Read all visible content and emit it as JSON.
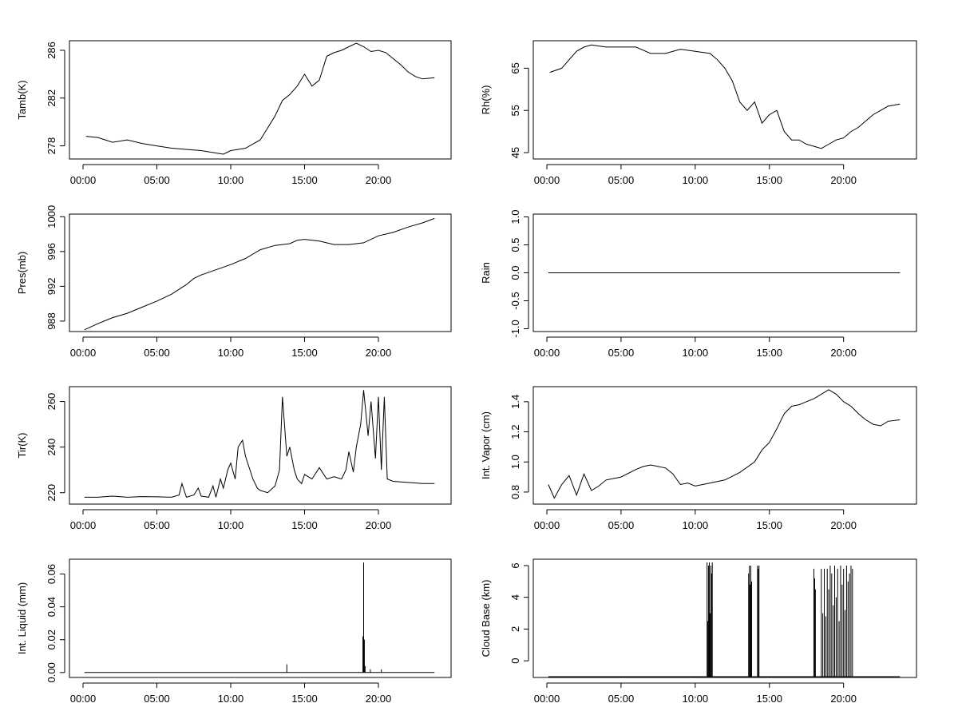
{
  "chart_data": [
    {
      "type": "line",
      "ylabel": "Tamb(K)",
      "xlabel": "",
      "xlim": [
        0,
        24
      ],
      "ylim": [
        276.9,
        286.8
      ],
      "x_ticks": [
        "00:00",
        "05:00",
        "10:00",
        "15:00",
        "20:00"
      ],
      "y_ticks": [
        "278",
        "282",
        "286"
      ],
      "y_tick_values": [
        278,
        282,
        286
      ],
      "x": [
        0.2,
        1,
        2,
        3,
        4,
        5,
        6,
        7,
        8,
        9,
        9.5,
        10,
        11,
        12,
        12.5,
        13,
        13.5,
        14,
        14.5,
        15,
        15.5,
        16,
        16.5,
        17,
        17.5,
        18,
        18.5,
        19,
        19.5,
        20,
        20.5,
        21,
        21.5,
        22,
        22.5,
        23,
        23.8
      ],
      "y": [
        278.8,
        278.7,
        278.3,
        278.5,
        278.2,
        278.0,
        277.8,
        277.7,
        277.6,
        277.4,
        277.3,
        277.6,
        277.8,
        278.5,
        279.5,
        280.5,
        281.8,
        282.3,
        283.0,
        284.0,
        283.0,
        283.5,
        285.5,
        285.8,
        286.0,
        286.3,
        286.6,
        286.3,
        285.9,
        286.0,
        285.8,
        285.3,
        284.8,
        284.2,
        283.8,
        283.6,
        283.7
      ]
    },
    {
      "type": "line",
      "ylabel": "Rh(%)",
      "xlabel": "",
      "xlim": [
        0,
        24
      ],
      "ylim": [
        43.5,
        71.5
      ],
      "x_ticks": [
        "00:00",
        "05:00",
        "10:00",
        "15:00",
        "20:00"
      ],
      "y_ticks": [
        "45",
        "55",
        "65"
      ],
      "y_tick_values": [
        45,
        55,
        65
      ],
      "x": [
        0.2,
        1,
        1.5,
        2,
        2.5,
        3,
        4,
        5,
        6,
        7,
        8,
        9,
        10,
        11,
        11.5,
        12,
        12.5,
        13,
        13.5,
        14,
        14.5,
        15,
        15.5,
        16,
        16.5,
        17,
        17.5,
        18,
        18.5,
        19,
        19.5,
        20,
        20.5,
        21,
        21.5,
        22,
        23,
        23.8
      ],
      "y": [
        64,
        65,
        67,
        69,
        70,
        70.5,
        70,
        70,
        70,
        68.5,
        68.5,
        69.5,
        69,
        68.5,
        67,
        65,
        62,
        57,
        55,
        57,
        52,
        54,
        55,
        50,
        48,
        48,
        47,
        46.5,
        46,
        47,
        48,
        48.5,
        50,
        51,
        52.5,
        54,
        56,
        56.5
      ]
    },
    {
      "type": "line",
      "ylabel": "Pres(mb)",
      "xlabel": "",
      "xlim": [
        0,
        24
      ],
      "ylim": [
        986.8,
        1000.3
      ],
      "x_ticks": [
        "00:00",
        "05:00",
        "10:00",
        "15:00",
        "20:00"
      ],
      "y_ticks": [
        "988",
        "992",
        "996",
        "1000"
      ],
      "y_tick_values": [
        988,
        992,
        996,
        1000
      ],
      "x": [
        0.1,
        1,
        2,
        3,
        4,
        5,
        6,
        7,
        7.5,
        8,
        9,
        10,
        11,
        12,
        13,
        14,
        14.5,
        15,
        16,
        17,
        18,
        19,
        20,
        21,
        22,
        23,
        23.8
      ],
      "y": [
        987.0,
        987.7,
        988.4,
        988.9,
        989.6,
        990.3,
        991.1,
        992.2,
        992.9,
        993.3,
        993.9,
        994.5,
        995.2,
        996.2,
        996.7,
        996.9,
        997.3,
        997.4,
        997.2,
        996.8,
        996.8,
        997.0,
        997.8,
        998.2,
        998.8,
        999.3,
        999.8
      ]
    },
    {
      "type": "line",
      "ylabel": "Rain",
      "xlabel": "",
      "xlim": [
        0,
        24
      ],
      "ylim": [
        -1.05,
        1.05
      ],
      "x_ticks": [
        "00:00",
        "05:00",
        "10:00",
        "15:00",
        "20:00"
      ],
      "y_ticks": [
        "-1.0",
        "-0.5",
        "0.0",
        "0.5",
        "1.0"
      ],
      "y_tick_values": [
        -1,
        -0.5,
        0,
        0.5,
        1
      ],
      "x": [
        0.1,
        23.8
      ],
      "y": [
        0,
        0
      ]
    },
    {
      "type": "line",
      "ylabel": "Tir(K)",
      "xlabel": "",
      "xlim": [
        0,
        24
      ],
      "ylim": [
        215,
        266.5
      ],
      "x_ticks": [
        "00:00",
        "05:00",
        "10:00",
        "15:00",
        "20:00"
      ],
      "y_ticks": [
        "220",
        "240",
        "260"
      ],
      "y_tick_values": [
        220,
        240,
        260
      ],
      "x": [
        0.1,
        1,
        2,
        3,
        4,
        5,
        6,
        6.5,
        6.7,
        7,
        7.5,
        7.8,
        8,
        8.5,
        8.8,
        9,
        9.3,
        9.5,
        9.8,
        10,
        10.3,
        10.5,
        10.8,
        11,
        11.3,
        11.5,
        11.8,
        12,
        12.5,
        13,
        13.3,
        13.5,
        13.8,
        14,
        14.3,
        14.5,
        14.8,
        15,
        15.5,
        16,
        16.5,
        17,
        17.5,
        17.8,
        18,
        18.3,
        18.5,
        18.8,
        19,
        19.3,
        19.5,
        19.8,
        20,
        20.2,
        20.4,
        20.6,
        21,
        22,
        23,
        23.8
      ],
      "y": [
        218,
        218,
        218.5,
        218,
        218.3,
        218.2,
        218,
        219,
        224,
        218,
        219,
        222,
        218.5,
        218,
        223,
        218,
        226,
        222,
        230,
        233,
        226,
        240,
        243,
        236,
        230,
        226,
        222,
        221,
        220,
        223,
        230,
        262,
        236,
        240,
        230,
        226,
        224,
        228,
        226,
        231,
        226,
        227,
        226,
        230,
        238,
        229,
        240,
        250,
        265,
        245,
        260,
        235,
        262,
        230,
        262,
        226,
        225,
        224.5,
        224,
        224
      ]
    },
    {
      "type": "line",
      "ylabel": "Int. Vapor (cm)",
      "xlabel": "",
      "xlim": [
        0,
        24
      ],
      "ylim": [
        0.72,
        1.5
      ],
      "x_ticks": [
        "00:00",
        "05:00",
        "10:00",
        "15:00",
        "20:00"
      ],
      "y_ticks": [
        "0.8",
        "1.0",
        "1.2",
        "1.4"
      ],
      "y_tick_values": [
        0.8,
        1.0,
        1.2,
        1.4
      ],
      "x": [
        0.1,
        0.5,
        1,
        1.5,
        2,
        2.5,
        3,
        3.5,
        4,
        5,
        6,
        6.5,
        7,
        8,
        8.5,
        9,
        9.5,
        10,
        11,
        12,
        13,
        14,
        14.5,
        15,
        15.5,
        16,
        16.5,
        17,
        17.5,
        18,
        18.5,
        19,
        19.5,
        20,
        20.5,
        21,
        21.5,
        22,
        22.5,
        23,
        23.8
      ],
      "y": [
        0.85,
        0.76,
        0.85,
        0.91,
        0.78,
        0.92,
        0.81,
        0.84,
        0.88,
        0.9,
        0.95,
        0.97,
        0.98,
        0.96,
        0.92,
        0.85,
        0.86,
        0.84,
        0.86,
        0.88,
        0.93,
        1.0,
        1.08,
        1.13,
        1.22,
        1.32,
        1.37,
        1.38,
        1.4,
        1.42,
        1.45,
        1.48,
        1.45,
        1.4,
        1.37,
        1.32,
        1.28,
        1.25,
        1.24,
        1.27,
        1.28
      ]
    },
    {
      "type": "line",
      "ylabel": "Int. Liquid (mm)",
      "xlabel": "",
      "xlim": [
        0,
        24
      ],
      "ylim": [
        -0.003,
        0.069
      ],
      "x_ticks": [
        "00:00",
        "05:00",
        "10:00",
        "15:00",
        "20:00"
      ],
      "y_ticks": [
        "0.00",
        "0.02",
        "0.04",
        "0.06"
      ],
      "y_tick_values": [
        0,
        0.02,
        0.04,
        0.06
      ],
      "x": [
        0.1,
        23.8
      ],
      "y": [
        0,
        0
      ],
      "spikes_x": [
        13.8,
        18.95,
        19.0,
        19.05,
        19.1,
        19.45,
        20.2
      ],
      "spikes_y": [
        0.005,
        0.022,
        0.067,
        0.02,
        0.004,
        0.002,
        0.002
      ]
    },
    {
      "type": "bar",
      "ylabel": "Cloud Base (km)",
      "xlabel": "",
      "xlim": [
        0,
        24
      ],
      "ylim": [
        -1.05,
        6.4
      ],
      "x_ticks": [
        "00:00",
        "05:00",
        "10:00",
        "15:00",
        "20:00"
      ],
      "y_ticks": [
        "0",
        "2",
        "4",
        "6"
      ],
      "y_tick_values": [
        0,
        2,
        4,
        6
      ],
      "baseline": -1,
      "baseline_x": [
        0.1,
        23.8
      ],
      "spikes_x": [
        10.8,
        10.85,
        10.9,
        10.95,
        11.0,
        11.05,
        11.1,
        11.15,
        13.6,
        13.65,
        13.7,
        13.75,
        13.8,
        14.2,
        14.25,
        14.3,
        18.0,
        18.05,
        18.1,
        18.5,
        18.6,
        18.7,
        18.8,
        18.9,
        19.0,
        19.1,
        19.2,
        19.3,
        19.4,
        19.5,
        19.6,
        19.7,
        19.8,
        19.9,
        20.0,
        20.1,
        20.2,
        20.3,
        20.4,
        20.5,
        20.6
      ],
      "spikes_y": [
        6.2,
        2.5,
        6.0,
        6.2,
        3.0,
        6.0,
        5.5,
        6.2,
        5.5,
        6.0,
        4.8,
        6.0,
        5.0,
        6.0,
        5.8,
        6.0,
        5.8,
        5.2,
        4.5,
        5.8,
        3.0,
        5.8,
        2.8,
        5.8,
        4.5,
        6.0,
        5.5,
        3.5,
        6.0,
        4.0,
        5.8,
        2.5,
        6.0,
        4.8,
        5.8,
        3.2,
        6.0,
        5.0,
        5.5,
        6.0,
        5.8
      ]
    }
  ]
}
